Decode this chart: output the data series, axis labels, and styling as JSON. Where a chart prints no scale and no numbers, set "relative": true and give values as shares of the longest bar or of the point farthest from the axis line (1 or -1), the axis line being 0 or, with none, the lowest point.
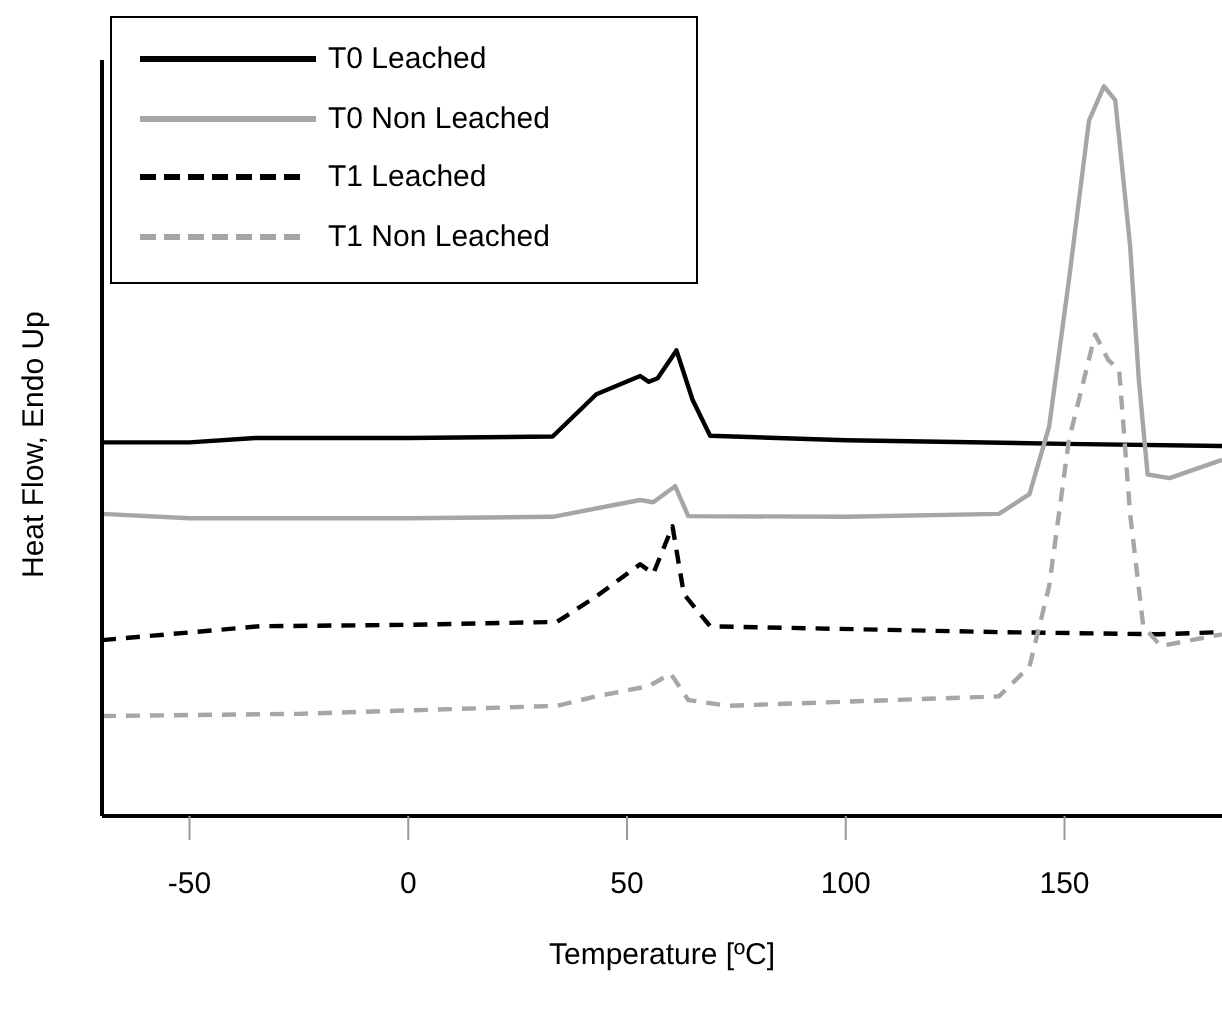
{
  "chart_data": {
    "type": "line",
    "relative": true,
    "xlabel": "Temperature [ºC]",
    "ylabel": "Heat Flow, Endo Up",
    "xlim": [
      -70,
      186
    ],
    "xticks": [
      -50,
      0,
      50,
      100,
      150
    ],
    "legend": "top left",
    "grid": false,
    "marker": "none",
    "series": [
      {
        "name": "T0 Leached",
        "color": "#000000",
        "line_style": "solid",
        "x": [
          -70,
          -50,
          -35,
          0,
          33,
          43,
          53,
          55,
          57,
          61.3,
          65,
          69,
          100,
          150,
          186
        ],
        "values": [
          0.512,
          0.512,
          0.518,
          0.518,
          0.52,
          0.578,
          0.603,
          0.595,
          0.6,
          0.638,
          0.57,
          0.521,
          0.515,
          0.51,
          0.507
        ]
      },
      {
        "name": "T0 Non Leached",
        "color": "#a6a6a6",
        "line_style": "solid",
        "x": [
          -70,
          -50,
          0,
          33,
          53,
          56,
          61,
          64,
          100,
          135,
          142,
          146.5,
          151,
          155.6,
          159,
          161.6,
          165,
          167,
          169,
          174,
          186
        ],
        "values": [
          0.414,
          0.408,
          0.408,
          0.41,
          0.433,
          0.43,
          0.452,
          0.411,
          0.41,
          0.414,
          0.441,
          0.534,
          0.734,
          0.953,
          1,
          0.981,
          0.781,
          0.597,
          0.468,
          0.463,
          0.488
        ]
      },
      {
        "name": "T1 Leached",
        "color": "#000000",
        "line_style": "dashed",
        "x": [
          -70,
          -43.5,
          -34,
          0,
          34,
          43,
          53,
          56,
          60.4,
          63,
          69,
          135,
          171.6,
          186
        ],
        "values": [
          0.241,
          0.255,
          0.26,
          0.262,
          0.266,
          0.301,
          0.345,
          0.332,
          0.397,
          0.304,
          0.26,
          0.252,
          0.249,
          0.252
        ]
      },
      {
        "name": "T1 Non Leached",
        "color": "#a6a6a6",
        "line_style": "dashed",
        "x": [
          -70,
          -25,
          34,
          43,
          55,
          60,
          64,
          73,
          135,
          142,
          146.5,
          151,
          157,
          160,
          162.5,
          165,
          168,
          172,
          186
        ],
        "values": [
          0.137,
          0.14,
          0.151,
          0.164,
          0.178,
          0.195,
          0.159,
          0.151,
          0.164,
          0.205,
          0.315,
          0.515,
          0.66,
          0.625,
          0.611,
          0.414,
          0.26,
          0.233,
          0.249
        ]
      }
    ]
  }
}
